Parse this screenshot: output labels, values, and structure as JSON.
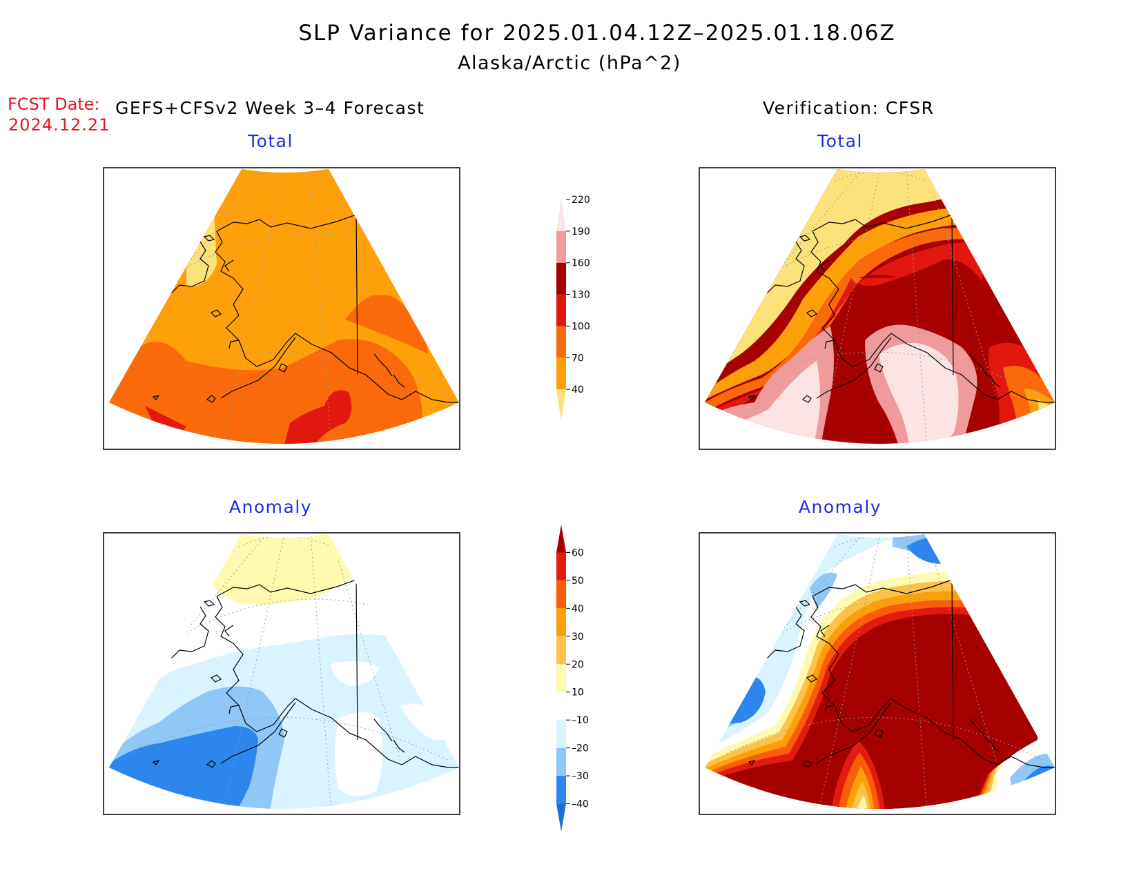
{
  "figure": {
    "title_line1": "SLP Variance for 2025.01.04.12Z–2025.01.18.06Z",
    "title_line2": "Alaska/Arctic (hPa^2)",
    "fcst_label": "FCST Date:",
    "fcst_date": "2024.12.21",
    "left_header": "GEFS+CFSv2 Week 3–4 Forecast",
    "right_header": "Verification: CFSR"
  },
  "panels": {
    "forecast_total": {
      "title": "Total"
    },
    "verification_total": {
      "title": "Total"
    },
    "forecast_anomaly": {
      "title": "Anomaly"
    },
    "verification_anomaly": {
      "title": "Anomaly"
    }
  },
  "colorbar_total": {
    "levels": [
      "40",
      "70",
      "100",
      "130",
      "160",
      "190",
      "220"
    ],
    "colors": [
      "#fde17a",
      "#fda00a",
      "#fb6a0a",
      "#e2170f",
      "#a60000",
      "#f09b9b",
      "#fde4e4"
    ]
  },
  "colorbar_anomaly": {
    "levels": [
      "–40",
      "–30",
      "–20",
      "–10",
      "10",
      "20",
      "30",
      "40",
      "50",
      "60"
    ],
    "colors": [
      "#1a6ee0",
      "#2d86ec",
      "#8fc7f7",
      "#daf4ff",
      "#ffffff",
      "#fffab0",
      "#fdc24a",
      "#fca00a",
      "#fb5c08",
      "#e21b10",
      "#a40000"
    ]
  },
  "palette": {
    "title_red": "#e8141e",
    "panel_title_blue": "#1a2ee8"
  }
}
